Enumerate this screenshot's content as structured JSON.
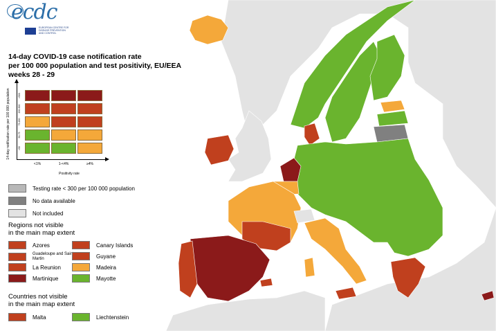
{
  "logo": {
    "wordmark": "ecdc",
    "subtitle": "EUROPEAN CENTRE FOR DISEASE PREVENTION AND CONTROL"
  },
  "title": {
    "line1": "14-day COVID-19 case notification rate",
    "line2": "per 100 000 population and test positivity, EU/EEA",
    "line3": "weeks 28 - 29"
  },
  "matrix": {
    "y_axis_label": "14-day notification rate per 100 000 population",
    "y_ticks": [
      ">500",
      "200-500",
      "75-200",
      "50-75",
      "<50"
    ],
    "x_ticks": [
      "<1%",
      "1-<4%",
      "≥4%"
    ],
    "x_axis_label": "Positivity rate",
    "cells": [
      [
        "#8b1a1a",
        "#8b1a1a",
        "#8b1a1a"
      ],
      [
        "#c0401e",
        "#c0401e",
        "#c0401e"
      ],
      [
        "#f4a83a",
        "#c0401e",
        "#c0401e"
      ],
      [
        "#6ab42e",
        "#f4a83a",
        "#f4a83a"
      ],
      [
        "#6ab42e",
        "#6ab42e",
        "#f4a83a"
      ]
    ]
  },
  "status_legend": [
    {
      "label": "Testing rate < 300 per 100 000 population",
      "color": "#b8b8b8"
    },
    {
      "label": "No data available",
      "color": "#808080"
    },
    {
      "label": "Not included",
      "color": "#e3e3e3"
    }
  ],
  "regions_heading": {
    "line1": "Regions not visible",
    "line2": "in the main map extent"
  },
  "regions": [
    {
      "label": "Azores",
      "color": "#c0401e"
    },
    {
      "label": "Canary Islands",
      "color": "#c0401e"
    },
    {
      "label": "Guadeloupe and Saint Martin",
      "color": "#c0401e"
    },
    {
      "label": "Guyane",
      "color": "#c0401e"
    },
    {
      "label": "La Reunion",
      "color": "#c0401e"
    },
    {
      "label": "Madeira",
      "color": "#f4a83a"
    },
    {
      "label": "Martinique",
      "color": "#8b1a1a"
    },
    {
      "label": "Mayotte",
      "color": "#6ab42e"
    }
  ],
  "countries_heading": {
    "line1": "Countries not visible",
    "line2": "in the main map extent"
  },
  "countries": [
    {
      "label": "Malta",
      "color": "#c0401e"
    },
    {
      "label": "Liechtenstein",
      "color": "#6ab42e"
    }
  ],
  "map_colors": {
    "land_other": "#e3e3e3",
    "sea": "#ffffff",
    "green": "#6ab42e",
    "orange": "#f4a83a",
    "red": "#c0401e",
    "darkred": "#8b1a1a",
    "grey": "#808080"
  }
}
